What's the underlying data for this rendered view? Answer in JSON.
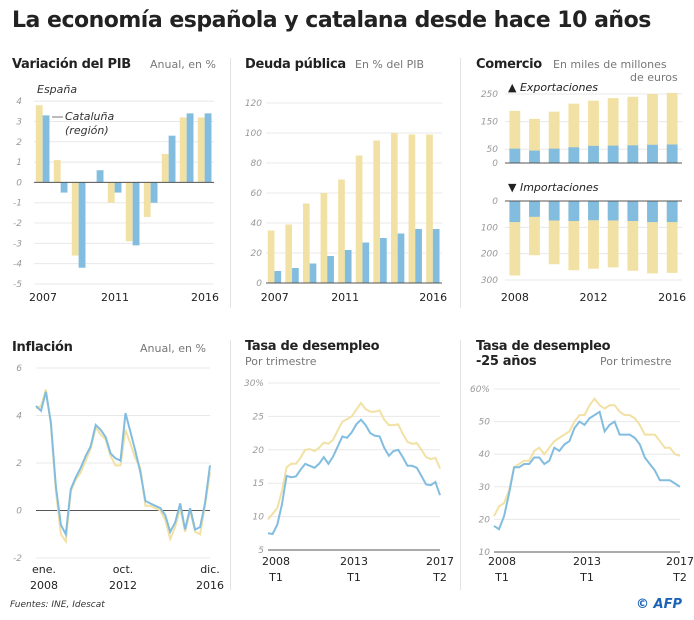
{
  "title": "La economía española y catalana desde hace 10 años",
  "colors": {
    "espana": "#f2e1a4",
    "cataluna": "#82bde0",
    "grid": "#e8e8e8",
    "axis": "#555555"
  },
  "panels": {
    "pib": {
      "title": "Variación del PIB",
      "subtitle": "Anual, en %",
      "legend_espana": "España",
      "legend_cataluna_1": "Cataluña",
      "legend_cataluna_2": "(región)"
    },
    "deuda": {
      "title": "Deuda pública",
      "subtitle": "En % del PIB"
    },
    "comercio": {
      "title": "Comercio",
      "subtitle_1": "En miles de millones",
      "subtitle_2": "de euros",
      "exports_label": "▲ Exportaciones",
      "imports_label": "▼ Importaciones"
    },
    "inflacion": {
      "title": "Inflación",
      "subtitle": "Anual, en %"
    },
    "desempleo": {
      "title": "Tasa de desempleo",
      "subtitle": "Por trimestre"
    },
    "desempleo25": {
      "title_1": "Tasa de desempleo",
      "title_2": "-25 años",
      "subtitle": "Por trimestre"
    }
  },
  "footer": {
    "sources": "Fuentes: INE, Idescat",
    "credit": "© AFP"
  },
  "chart_data": [
    {
      "id": "pib",
      "type": "bar",
      "years": [
        2007,
        2008,
        2009,
        2010,
        2011,
        2012,
        2013,
        2014,
        2015,
        2016
      ],
      "x_tick_labels": [
        "2007",
        "2011",
        "2016"
      ],
      "y_ticks": [
        4,
        3,
        2,
        1,
        0,
        -1,
        -2,
        -3,
        -4,
        -5
      ],
      "ylim": [
        -5,
        4.5
      ],
      "grid": true,
      "series": [
        {
          "name": "España",
          "values": [
            3.8,
            1.1,
            -3.6,
            0.0,
            -1.0,
            -2.9,
            -1.7,
            1.4,
            3.2,
            3.2
          ]
        },
        {
          "name": "Cataluña (región)",
          "values": [
            3.3,
            -0.5,
            -4.2,
            0.6,
            -0.5,
            -3.1,
            -1.0,
            2.3,
            3.4,
            3.4
          ]
        }
      ]
    },
    {
      "id": "deuda",
      "type": "bar",
      "years": [
        2007,
        2008,
        2009,
        2010,
        2011,
        2012,
        2013,
        2014,
        2015,
        2016
      ],
      "x_tick_labels": [
        "2007",
        "2011",
        "2016"
      ],
      "y_ticks": [
        120,
        100,
        80,
        60,
        40,
        20,
        0
      ],
      "ylim": [
        0,
        120
      ],
      "grid": true,
      "series": [
        {
          "name": "España",
          "values": [
            35,
            39,
            53,
            60,
            69,
            85,
            95,
            100,
            99,
            99
          ]
        },
        {
          "name": "Cataluña",
          "values": [
            8,
            10,
            13,
            18,
            22,
            27,
            30,
            33,
            36,
            36
          ]
        }
      ]
    },
    {
      "id": "comercio",
      "type": "bar",
      "years": [
        2008,
        2009,
        2010,
        2011,
        2012,
        2013,
        2014,
        2015,
        2016
      ],
      "x_tick_labels": [
        "2008",
        "2012",
        "2016"
      ],
      "exports": {
        "y_ticks": [
          250,
          150,
          50,
          0
        ],
        "ylim": [
          0,
          250
        ],
        "series": [
          {
            "name": "España",
            "values": [
              189,
              160,
              186,
              215,
              226,
              235,
              240,
              250,
              254
            ]
          },
          {
            "name": "Cataluña",
            "values": [
              52,
              45,
              52,
              57,
              62,
              63,
              64,
              66,
              67
            ]
          }
        ]
      },
      "imports": {
        "y_ticks": [
          0,
          100,
          200,
          300
        ],
        "ylim": [
          0,
          300
        ],
        "series": [
          {
            "name": "España",
            "values": [
              283,
              206,
              240,
              263,
              257,
              252,
              265,
              275,
              273
            ]
          },
          {
            "name": "Cataluña",
            "values": [
              80,
              60,
              74,
              76,
              73,
              74,
              76,
              80,
              80
            ]
          }
        ]
      }
    },
    {
      "id": "inflacion",
      "type": "line",
      "x_tick_labels": [
        [
          "ene.",
          "2008"
        ],
        [
          "oct.",
          "2012"
        ],
        [
          "dic.",
          "2016"
        ]
      ],
      "x_range": [
        "2008-01",
        "2016-12"
      ],
      "y_ticks": [
        6,
        4,
        2,
        0,
        -2
      ],
      "ylim": [
        -2,
        6
      ],
      "grid": true,
      "series": [
        {
          "name": "España",
          "values": [
            4.3,
            4.4,
            5.1,
            3.6,
            0.8,
            -1.0,
            -1.3,
            0.8,
            1.3,
            1.6,
            2.1,
            2.6,
            3.5,
            3.2,
            3.0,
            2.3,
            1.9,
            1.9,
            3.4,
            2.8,
            2.2,
            1.8,
            0.2,
            0.2,
            0.1,
            0.0,
            -0.4,
            -1.2,
            -0.7,
            0.1,
            -0.9,
            0.0,
            -0.9,
            -1.0,
            0.2,
            1.6
          ]
        },
        {
          "name": "Cataluña",
          "values": [
            4.4,
            4.2,
            5.0,
            3.7,
            1.0,
            -0.6,
            -1.0,
            0.9,
            1.4,
            1.8,
            2.3,
            2.7,
            3.6,
            3.4,
            3.1,
            2.4,
            2.2,
            2.1,
            4.1,
            3.3,
            2.5,
            1.6,
            0.4,
            0.3,
            0.2,
            0.1,
            -0.2,
            -0.9,
            -0.5,
            0.3,
            -0.8,
            0.1,
            -0.8,
            -0.7,
            0.3,
            1.9
          ]
        }
      ]
    },
    {
      "id": "desempleo",
      "type": "line",
      "x_tick_labels": [
        [
          "2008",
          "T1"
        ],
        [
          "2013",
          "T1"
        ],
        [
          "2017",
          "T2"
        ]
      ],
      "x_range": [
        "2008T1",
        "2017T2"
      ],
      "y_ticks": [
        "30%",
        "25",
        "20",
        "15",
        "10",
        "5"
      ],
      "ylim": [
        5,
        30
      ],
      "grid": true,
      "series": [
        {
          "name": "España",
          "values": [
            9.6,
            10.4,
            11.3,
            13.8,
            17.4,
            17.9,
            17.9,
            18.8,
            20.0,
            20.1,
            19.8,
            20.3,
            21.1,
            20.9,
            21.5,
            22.9,
            24.2,
            24.6,
            25.0,
            26.0,
            27.0,
            26.1,
            25.7,
            25.7,
            25.9,
            24.5,
            23.7,
            23.7,
            23.8,
            22.4,
            21.2,
            20.9,
            21.0,
            20.0,
            18.9,
            18.6,
            18.8,
            17.2
          ]
        },
        {
          "name": "Cataluña",
          "values": [
            7.5,
            7.4,
            8.8,
            11.8,
            16.1,
            15.9,
            16.0,
            17.0,
            17.9,
            17.6,
            17.3,
            17.9,
            18.9,
            17.9,
            19.0,
            20.5,
            22.0,
            21.8,
            22.6,
            23.8,
            24.5,
            23.7,
            22.5,
            22.1,
            22.0,
            20.3,
            19.1,
            19.8,
            20.0,
            18.9,
            17.6,
            17.6,
            17.3,
            16.1,
            14.8,
            14.7,
            15.2,
            13.2
          ]
        }
      ]
    },
    {
      "id": "desempleo25",
      "type": "line",
      "x_tick_labels": [
        [
          "2008",
          "T1"
        ],
        [
          "2013",
          "T1"
        ],
        [
          "2017",
          "T2"
        ]
      ],
      "x_range": [
        "2008T1",
        "2017T2"
      ],
      "y_ticks": [
        "60%",
        "50",
        "40",
        "30",
        "20",
        "10"
      ],
      "ylim": [
        10,
        60
      ],
      "grid": true,
      "series": [
        {
          "name": "España",
          "values": [
            21,
            24,
            25,
            29,
            36,
            37,
            38,
            38,
            41,
            42,
            40,
            42,
            44,
            45,
            46,
            47,
            50,
            52,
            52,
            55,
            57,
            55,
            54,
            55,
            55,
            53,
            52,
            52,
            51,
            49,
            46,
            46,
            46,
            44,
            42,
            42,
            40,
            39.5
          ]
        },
        {
          "name": "Cataluña",
          "values": [
            18,
            17,
            21,
            28,
            36,
            36,
            37,
            37,
            39,
            39,
            37,
            38,
            42,
            41,
            43,
            44,
            48,
            50,
            49,
            51,
            52,
            53,
            47,
            49,
            50,
            46,
            46,
            46,
            45,
            43,
            39,
            37,
            35,
            32,
            32,
            32,
            31,
            30
          ]
        }
      ]
    }
  ]
}
